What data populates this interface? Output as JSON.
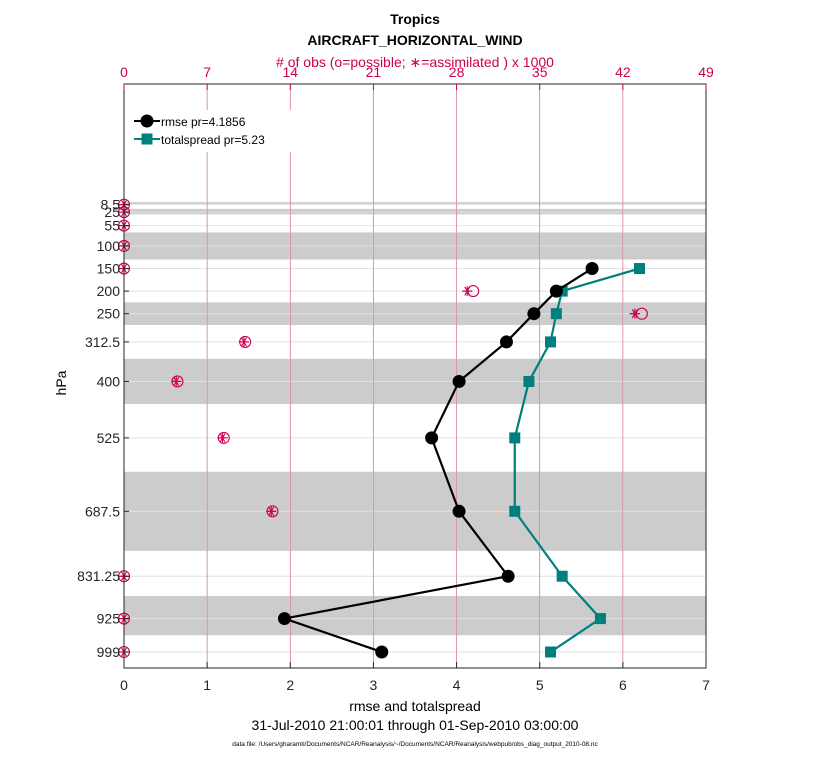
{
  "chart_data": {
    "type": "line",
    "title": "Tropics",
    "subtitle": "AIRCRAFT_HORIZONTAL_WIND",
    "top_axis_label": "# of obs (o=possible; ∗=assimilated ) x 1000",
    "xlabel": "rmse and totalspread",
    "ylabel": "hPa",
    "date_range": "31-Jul-2010 21:00:01 through 01-Sep-2010 03:00:00",
    "footnote": "data file: /Users/gharamti/Documents/NCAR/Reanalysis/~/Documents/NCAR/Reanalysis/webpub/obs_diag_output_2010-08.nc",
    "xlim": [
      0,
      7
    ],
    "x_ticks": [
      "0",
      "1",
      "2",
      "3",
      "4",
      "5",
      "6",
      "7"
    ],
    "top_xlim": [
      0,
      49
    ],
    "top_ticks": [
      "0",
      "7",
      "14",
      "21",
      "28",
      "35",
      "42",
      "49"
    ],
    "levels": [
      "8.5",
      "25",
      "55",
      "100",
      "150",
      "200",
      "250",
      "312.5",
      "400",
      "525",
      "687.5",
      "831.25",
      "925",
      "999"
    ],
    "grey_bands": [
      [
        18,
        30
      ],
      [
        70,
        130
      ],
      [
        225,
        275
      ],
      [
        350,
        450
      ],
      [
        600,
        775
      ],
      [
        875,
        962
      ]
    ],
    "colors": {
      "rmse": "#000000",
      "spread": "#007f7f",
      "obs": "#cc0052",
      "band": "#cccccc",
      "grid": "#e2e2e2"
    },
    "legend": [
      "rmse pr=4.1856",
      "totalspread pr=5.23"
    ],
    "series": [
      {
        "name": "rmse",
        "pressure": [
          150,
          200,
          250,
          312.5,
          400,
          525,
          687.5,
          831.25,
          925,
          999
        ],
        "values": [
          5.63,
          5.2,
          4.93,
          4.6,
          4.03,
          3.7,
          4.03,
          4.62,
          1.93,
          3.1
        ]
      },
      {
        "name": "totalspread",
        "pressure": [
          150,
          200,
          250,
          312.5,
          400,
          525,
          687.5,
          831.25,
          925,
          999
        ],
        "values": [
          6.2,
          5.27,
          5.2,
          5.13,
          4.87,
          4.7,
          4.7,
          5.27,
          5.73,
          5.13
        ]
      }
    ],
    "obs_counts": {
      "pressure": [
        8.5,
        25,
        55,
        100,
        150,
        200,
        250,
        312.5,
        400,
        525,
        687.5,
        831.25,
        925,
        999
      ],
      "possible": [
        0,
        0,
        0,
        0,
        0,
        29.4,
        43.6,
        10.2,
        4.5,
        8.4,
        12.5,
        0,
        0,
        0
      ],
      "assimilated": [
        0,
        0,
        0,
        0,
        0,
        28.9,
        43.0,
        10.1,
        4.4,
        8.3,
        12.4,
        0,
        0,
        0
      ]
    }
  }
}
